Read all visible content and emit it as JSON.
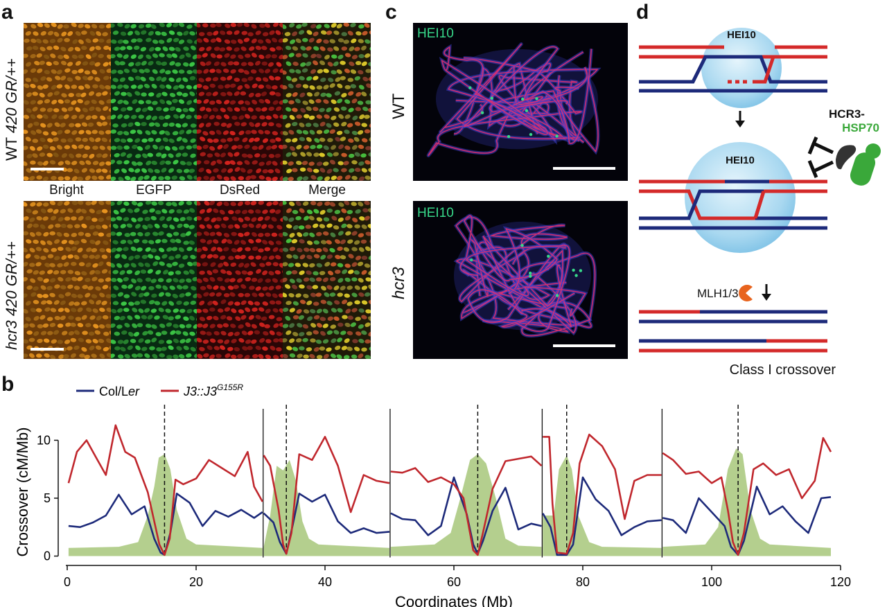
{
  "panel_a": {
    "letter": "a",
    "channels": [
      "Bright",
      "EGFP",
      "DsRed",
      "Merge"
    ],
    "rows": [
      {
        "genotype": "WT",
        "construct": "420 GR/++"
      },
      {
        "genotype": "hcr3",
        "construct": "420 GR/++"
      }
    ],
    "channel_colors": {
      "bright": "#e8941f",
      "egfp": "#2fb84a",
      "dsred": "#c8231e"
    }
  },
  "panel_c": {
    "letter": "c",
    "stain": "HEI10",
    "rows": [
      {
        "label": "WT"
      },
      {
        "label": "hcr3"
      }
    ],
    "colors": {
      "stain": "#38d98a",
      "axis": "#e0306e",
      "dna": "#3a3fd0"
    }
  },
  "panel_d": {
    "letter": "d",
    "condensate_top": "HEI10",
    "condensate_middle": "HEI10",
    "protein_top": "HCR3-",
    "protein_bottom": "HSP70",
    "mlh": "MLH1/3",
    "caption": "Class I crossover",
    "colors": {
      "red": "#d42a2a",
      "blue": "#1d2a7a",
      "sphere": "#a9d8f0",
      "hsp": "#3aa83a",
      "hcr3": "#333333",
      "mlh": "#e8641e"
    }
  },
  "chart_data": {
    "type": "line",
    "letter": "b",
    "ylabel": "Crossover (cM/Mb)",
    "xlabel": "Coordinates (Mb)",
    "xlim": [
      0,
      120
    ],
    "ylim": [
      0,
      12
    ],
    "xticks": [
      0,
      20,
      40,
      60,
      80,
      100,
      120
    ],
    "yticks": [
      0,
      5,
      10
    ],
    "legend_position": "top-left",
    "chromosome_boundaries": [
      30.4,
      50.1,
      73.7,
      92.3
    ],
    "centromeres": [
      15.1,
      34.0,
      63.7,
      77.5,
      104.1
    ],
    "series": [
      {
        "name": "Col/Ler",
        "color": "#1d2a7a",
        "points": [
          [
            0.2,
            2.6
          ],
          [
            2,
            2.5
          ],
          [
            4,
            2.9
          ],
          [
            6,
            3.5
          ],
          [
            8,
            5.3
          ],
          [
            10,
            3.6
          ],
          [
            12,
            4.3
          ],
          [
            13.5,
            1.5
          ],
          [
            14.5,
            0.3
          ],
          [
            15.1,
            0.1
          ],
          [
            16,
            2.0
          ],
          [
            17,
            5.4
          ],
          [
            19,
            4.6
          ],
          [
            21,
            2.6
          ],
          [
            23,
            3.9
          ],
          [
            25,
            3.4
          ],
          [
            27,
            4.0
          ],
          [
            29,
            3.3
          ],
          [
            30.3,
            3.8
          ],
          [
            30.5,
            3.7
          ],
          [
            32,
            2.9
          ],
          [
            33,
            1.2
          ],
          [
            34,
            0.2
          ],
          [
            35,
            2.7
          ],
          [
            36,
            5.4
          ],
          [
            38,
            4.7
          ],
          [
            40,
            5.3
          ],
          [
            42,
            3.0
          ],
          [
            44,
            2.0
          ],
          [
            46,
            2.4
          ],
          [
            48,
            2.0
          ],
          [
            50,
            2.1
          ],
          [
            50.2,
            3.7
          ],
          [
            52,
            3.2
          ],
          [
            54,
            3.1
          ],
          [
            56,
            1.8
          ],
          [
            58,
            2.6
          ],
          [
            60,
            6.8
          ],
          [
            62,
            3.6
          ],
          [
            63,
            1.0
          ],
          [
            63.7,
            0.2
          ],
          [
            64.5,
            1.3
          ],
          [
            66,
            3.9
          ],
          [
            68,
            5.9
          ],
          [
            70,
            2.3
          ],
          [
            72,
            2.8
          ],
          [
            73.6,
            2.6
          ],
          [
            73.8,
            3.7
          ],
          [
            75,
            2.5
          ],
          [
            76,
            0.1
          ],
          [
            77.5,
            0.1
          ],
          [
            78.5,
            1.0
          ],
          [
            80,
            6.8
          ],
          [
            82,
            4.9
          ],
          [
            84,
            3.9
          ],
          [
            86,
            1.8
          ],
          [
            88,
            2.5
          ],
          [
            90,
            3.0
          ],
          [
            92.2,
            3.1
          ],
          [
            92.4,
            3.3
          ],
          [
            94,
            3.1
          ],
          [
            96,
            2.0
          ],
          [
            98,
            5.0
          ],
          [
            100,
            3.8
          ],
          [
            102,
            2.6
          ],
          [
            103,
            0.8
          ],
          [
            104.1,
            0.1
          ],
          [
            105,
            1.3
          ],
          [
            107,
            6.0
          ],
          [
            109,
            3.6
          ],
          [
            111,
            4.3
          ],
          [
            113,
            3.0
          ],
          [
            115,
            2.0
          ],
          [
            117,
            5.0
          ],
          [
            118.5,
            5.1
          ]
        ]
      },
      {
        "name": "J3::J3^G155R",
        "color": "#c0272d",
        "points": [
          [
            0.2,
            6.3
          ],
          [
            1.5,
            9.0
          ],
          [
            3,
            10.0
          ],
          [
            4.5,
            8.5
          ],
          [
            6,
            7.0
          ],
          [
            7.5,
            11.3
          ],
          [
            9,
            9.0
          ],
          [
            10.5,
            8.5
          ],
          [
            11.5,
            7.0
          ],
          [
            12.5,
            5.5
          ],
          [
            13.5,
            3.0
          ],
          [
            14.3,
            1.0
          ],
          [
            15.1,
            0.1
          ],
          [
            15.9,
            1.5
          ],
          [
            16.8,
            6.6
          ],
          [
            18,
            6.2
          ],
          [
            20,
            6.7
          ],
          [
            22,
            8.3
          ],
          [
            24,
            7.6
          ],
          [
            26,
            6.9
          ],
          [
            28,
            9.0
          ],
          [
            29,
            6.0
          ],
          [
            30.3,
            4.7
          ],
          [
            30.5,
            8.7
          ],
          [
            31.5,
            7.8
          ],
          [
            32.8,
            4.0
          ],
          [
            33.5,
            1.0
          ],
          [
            34,
            0.2
          ],
          [
            34.8,
            2.0
          ],
          [
            36,
            8.8
          ],
          [
            38,
            8.3
          ],
          [
            40,
            10.3
          ],
          [
            42,
            7.8
          ],
          [
            44,
            3.8
          ],
          [
            46,
            7.0
          ],
          [
            48,
            6.5
          ],
          [
            50,
            6.3
          ],
          [
            50.2,
            7.3
          ],
          [
            52,
            7.2
          ],
          [
            54,
            7.6
          ],
          [
            56,
            6.4
          ],
          [
            58,
            6.8
          ],
          [
            60,
            6.2
          ],
          [
            61.5,
            5.0
          ],
          [
            63,
            0.5
          ],
          [
            63.7,
            0.1
          ],
          [
            64.5,
            2.0
          ],
          [
            66,
            5.8
          ],
          [
            68,
            8.2
          ],
          [
            70,
            8.4
          ],
          [
            72,
            8.6
          ],
          [
            73.6,
            7.8
          ],
          [
            73.8,
            10.3
          ],
          [
            74.8,
            10.3
          ],
          [
            75.3,
            4.5
          ],
          [
            76,
            0.3
          ],
          [
            77.5,
            0.2
          ],
          [
            78.5,
            2.0
          ],
          [
            79.5,
            8.0
          ],
          [
            81,
            10.5
          ],
          [
            83,
            9.5
          ],
          [
            85,
            7.5
          ],
          [
            86.5,
            3.2
          ],
          [
            88,
            6.5
          ],
          [
            90,
            7.0
          ],
          [
            92.2,
            7.0
          ],
          [
            92.4,
            8.9
          ],
          [
            94,
            8.3
          ],
          [
            96,
            7.1
          ],
          [
            98,
            7.3
          ],
          [
            100,
            6.3
          ],
          [
            101.5,
            6.8
          ],
          [
            102.5,
            4.0
          ],
          [
            103.3,
            1.2
          ],
          [
            104.1,
            0.1
          ],
          [
            105,
            2.0
          ],
          [
            106.5,
            7.5
          ],
          [
            108,
            8.0
          ],
          [
            110,
            7.0
          ],
          [
            112,
            7.5
          ],
          [
            114,
            5.0
          ],
          [
            116,
            6.5
          ],
          [
            117.3,
            10.2
          ],
          [
            118.5,
            9.0
          ]
        ]
      }
    ],
    "shaded_profile": {
      "color": "#a7c77a",
      "points": [
        [
          0.2,
          0.7
        ],
        [
          8,
          0.8
        ],
        [
          11,
          1.2
        ],
        [
          12.5,
          3.5
        ],
        [
          13.5,
          6.0
        ],
        [
          14.2,
          8.5
        ],
        [
          15.1,
          8.8
        ],
        [
          16,
          7.5
        ],
        [
          17,
          4.0
        ],
        [
          18.5,
          1.5
        ],
        [
          20,
          1.0
        ],
        [
          30.3,
          0.7
        ],
        [
          30.5,
          0.8
        ],
        [
          31.5,
          3.5
        ],
        [
          32.5,
          7.8
        ],
        [
          33.5,
          7.4
        ],
        [
          34.5,
          8.3
        ],
        [
          35.5,
          6.5
        ],
        [
          36.5,
          3.0
        ],
        [
          37.5,
          1.5
        ],
        [
          39,
          1.0
        ],
        [
          50,
          0.7
        ],
        [
          50.2,
          0.8
        ],
        [
          57,
          1.0
        ],
        [
          59.5,
          2.0
        ],
        [
          61,
          5.0
        ],
        [
          62.5,
          8.3
        ],
        [
          63.7,
          8.8
        ],
        [
          65,
          8.0
        ],
        [
          66.5,
          5.0
        ],
        [
          68,
          1.5
        ],
        [
          70,
          0.9
        ],
        [
          73.6,
          0.8
        ],
        [
          73.8,
          3.5
        ],
        [
          75.5,
          3.5
        ],
        [
          76.3,
          7.5
        ],
        [
          77.5,
          8.7
        ],
        [
          78.3,
          7.5
        ],
        [
          79.3,
          3.5
        ],
        [
          81,
          1.2
        ],
        [
          83,
          0.8
        ],
        [
          92.2,
          0.7
        ],
        [
          92.4,
          0.8
        ],
        [
          99,
          1.0
        ],
        [
          101,
          2.5
        ],
        [
          102.5,
          7.5
        ],
        [
          103.8,
          9.3
        ],
        [
          104.8,
          8.8
        ],
        [
          106,
          4.0
        ],
        [
          107.5,
          1.5
        ],
        [
          109,
          1.0
        ],
        [
          118.5,
          0.7
        ]
      ]
    }
  }
}
